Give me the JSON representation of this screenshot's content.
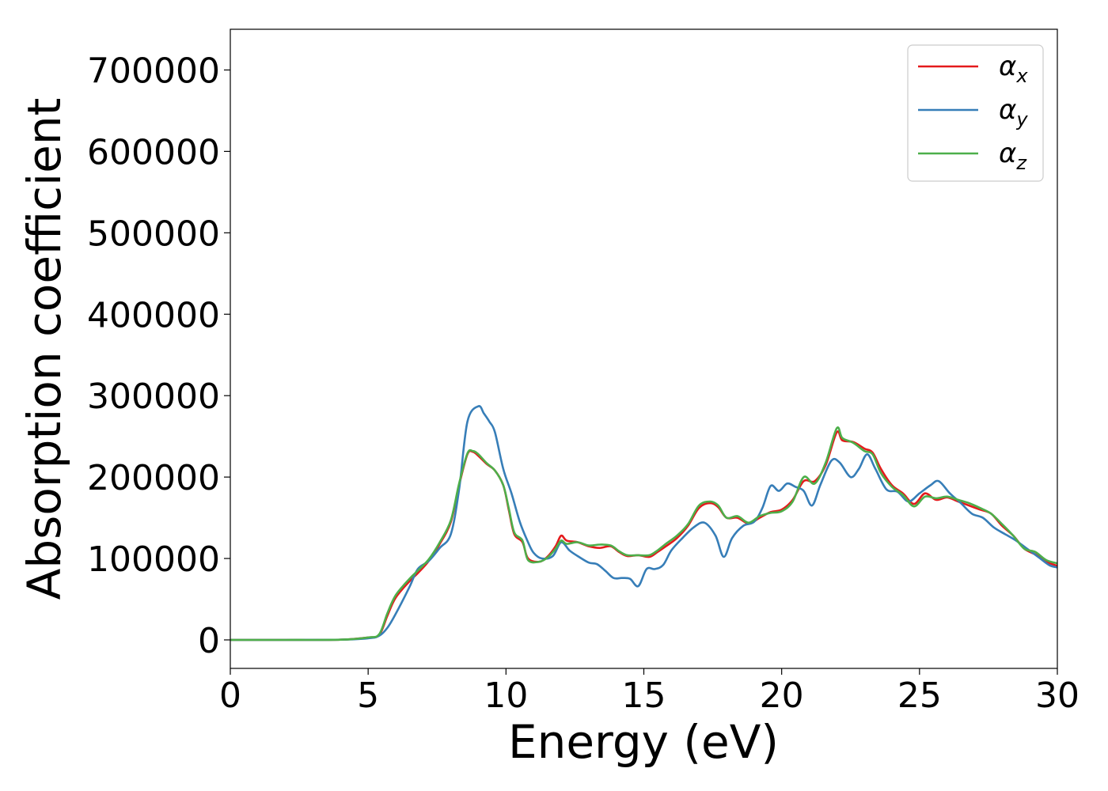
{
  "chart_data": {
    "type": "line",
    "title": "",
    "xlabel": "Energy (eV)",
    "ylabel": "Absorption coefficient",
    "xlim": [
      0,
      30
    ],
    "ylim": [
      -35000,
      750000
    ],
    "xticks": [
      0,
      5,
      10,
      15,
      20,
      25,
      30
    ],
    "xtick_labels": [
      "0",
      "5",
      "10",
      "15",
      "20",
      "25",
      "30"
    ],
    "yticks": [
      0,
      100000,
      200000,
      300000,
      400000,
      500000,
      600000,
      700000
    ],
    "ytick_labels": [
      "0",
      "100000",
      "200000",
      "300000",
      "400000",
      "500000",
      "600000",
      "700000"
    ],
    "grid": false,
    "legend_position": "top-right",
    "series": [
      {
        "name": "αx",
        "legend_base": "α",
        "legend_sub": "x",
        "color": "#e41a1c",
        "points": [
          [
            0,
            0
          ],
          [
            2,
            0
          ],
          [
            4,
            300
          ],
          [
            5,
            3000
          ],
          [
            5.4,
            6000
          ],
          [
            5.7,
            30000
          ],
          [
            6,
            52000
          ],
          [
            6.5,
            72000
          ],
          [
            6.8,
            82000
          ],
          [
            7.2,
            97000
          ],
          [
            7.6,
            118000
          ],
          [
            8,
            145000
          ],
          [
            8.3,
            190000
          ],
          [
            8.6,
            228000
          ],
          [
            8.8,
            231000
          ],
          [
            9,
            226000
          ],
          [
            9.3,
            216000
          ],
          [
            9.6,
            208000
          ],
          [
            9.9,
            190000
          ],
          [
            10.1,
            160000
          ],
          [
            10.3,
            130000
          ],
          [
            10.6,
            120000
          ],
          [
            10.8,
            100000
          ],
          [
            11.2,
            96000
          ],
          [
            11.5,
            102000
          ],
          [
            11.8,
            115000
          ],
          [
            12,
            128000
          ],
          [
            12.2,
            122000
          ],
          [
            12.6,
            120000
          ],
          [
            13,
            115000
          ],
          [
            13.4,
            113000
          ],
          [
            13.8,
            115000
          ],
          [
            14.1,
            108000
          ],
          [
            14.4,
            103000
          ],
          [
            14.8,
            104000
          ],
          [
            15.2,
            102000
          ],
          [
            15.5,
            108000
          ],
          [
            15.8,
            115000
          ],
          [
            16.2,
            125000
          ],
          [
            16.6,
            140000
          ],
          [
            17,
            162000
          ],
          [
            17.4,
            168000
          ],
          [
            17.7,
            163000
          ],
          [
            18,
            150000
          ],
          [
            18.4,
            150000
          ],
          [
            18.8,
            143000
          ],
          [
            19.2,
            150000
          ],
          [
            19.6,
            157000
          ],
          [
            20,
            160000
          ],
          [
            20.4,
            172000
          ],
          [
            20.8,
            195000
          ],
          [
            21.2,
            195000
          ],
          [
            21.6,
            215000
          ],
          [
            22,
            255000
          ],
          [
            22.2,
            245000
          ],
          [
            22.6,
            243000
          ],
          [
            23,
            235000
          ],
          [
            23.3,
            230000
          ],
          [
            23.6,
            210000
          ],
          [
            24,
            190000
          ],
          [
            24.4,
            180000
          ],
          [
            24.8,
            167000
          ],
          [
            25.2,
            180000
          ],
          [
            25.6,
            172000
          ],
          [
            26,
            175000
          ],
          [
            26.4,
            170000
          ],
          [
            26.8,
            165000
          ],
          [
            27.2,
            160000
          ],
          [
            27.6,
            155000
          ],
          [
            28,
            140000
          ],
          [
            28.4,
            128000
          ],
          [
            28.8,
            112000
          ],
          [
            29.2,
            105000
          ],
          [
            29.6,
            96000
          ],
          [
            30,
            91000
          ]
        ]
      },
      {
        "name": "αy",
        "legend_base": "α",
        "legend_sub": "y",
        "color": "#377eb8",
        "points": [
          [
            0,
            0
          ],
          [
            2,
            0
          ],
          [
            4,
            300
          ],
          [
            5,
            2000
          ],
          [
            5.4,
            5000
          ],
          [
            5.7,
            15000
          ],
          [
            6,
            32000
          ],
          [
            6.5,
            65000
          ],
          [
            6.8,
            87000
          ],
          [
            7.2,
            97000
          ],
          [
            7.6,
            113000
          ],
          [
            8,
            130000
          ],
          [
            8.3,
            185000
          ],
          [
            8.6,
            268000
          ],
          [
            9,
            287000
          ],
          [
            9.2,
            278000
          ],
          [
            9.4,
            268000
          ],
          [
            9.6,
            255000
          ],
          [
            9.9,
            210000
          ],
          [
            10.2,
            180000
          ],
          [
            10.5,
            145000
          ],
          [
            10.8,
            120000
          ],
          [
            11,
            107000
          ],
          [
            11.3,
            100000
          ],
          [
            11.7,
            103000
          ],
          [
            12,
            120000
          ],
          [
            12.3,
            110000
          ],
          [
            12.6,
            103000
          ],
          [
            13,
            95000
          ],
          [
            13.3,
            93000
          ],
          [
            13.6,
            85000
          ],
          [
            13.9,
            76000
          ],
          [
            14.2,
            76000
          ],
          [
            14.5,
            75000
          ],
          [
            14.8,
            66000
          ],
          [
            15.1,
            87000
          ],
          [
            15.4,
            87000
          ],
          [
            15.7,
            92000
          ],
          [
            16,
            110000
          ],
          [
            16.4,
            125000
          ],
          [
            16.8,
            138000
          ],
          [
            17.2,
            144000
          ],
          [
            17.6,
            128000
          ],
          [
            17.9,
            102000
          ],
          [
            18.2,
            125000
          ],
          [
            18.6,
            140000
          ],
          [
            19,
            145000
          ],
          [
            19.3,
            162000
          ],
          [
            19.6,
            189000
          ],
          [
            19.9,
            183000
          ],
          [
            20.2,
            192000
          ],
          [
            20.5,
            188000
          ],
          [
            20.8,
            183000
          ],
          [
            21.1,
            165000
          ],
          [
            21.4,
            190000
          ],
          [
            21.8,
            220000
          ],
          [
            22.1,
            218000
          ],
          [
            22.5,
            200000
          ],
          [
            22.8,
            210000
          ],
          [
            23.1,
            228000
          ],
          [
            23.4,
            210000
          ],
          [
            23.8,
            185000
          ],
          [
            24.2,
            182000
          ],
          [
            24.6,
            170000
          ],
          [
            25,
            180000
          ],
          [
            25.4,
            190000
          ],
          [
            25.7,
            195000
          ],
          [
            26.1,
            180000
          ],
          [
            26.5,
            168000
          ],
          [
            26.9,
            155000
          ],
          [
            27.3,
            150000
          ],
          [
            27.7,
            138000
          ],
          [
            28.1,
            130000
          ],
          [
            28.5,
            122000
          ],
          [
            28.9,
            112000
          ],
          [
            29.3,
            102000
          ],
          [
            29.7,
            92000
          ],
          [
            30,
            89000
          ]
        ]
      },
      {
        "name": "αz",
        "legend_base": "α",
        "legend_sub": "z",
        "color": "#4daf4a",
        "points": [
          [
            0,
            0
          ],
          [
            2,
            0
          ],
          [
            4,
            300
          ],
          [
            5,
            3000
          ],
          [
            5.4,
            7000
          ],
          [
            5.7,
            33000
          ],
          [
            6,
            55000
          ],
          [
            6.5,
            75000
          ],
          [
            6.8,
            85000
          ],
          [
            7.2,
            99000
          ],
          [
            7.6,
            120000
          ],
          [
            8,
            147000
          ],
          [
            8.3,
            192000
          ],
          [
            8.6,
            229000
          ],
          [
            8.8,
            232000
          ],
          [
            9,
            228000
          ],
          [
            9.3,
            217000
          ],
          [
            9.6,
            208000
          ],
          [
            9.9,
            190000
          ],
          [
            10.1,
            162000
          ],
          [
            10.3,
            132000
          ],
          [
            10.6,
            122000
          ],
          [
            10.8,
            98000
          ],
          [
            11.2,
            96000
          ],
          [
            11.5,
            101000
          ],
          [
            11.8,
            112000
          ],
          [
            12,
            122000
          ],
          [
            12.2,
            118000
          ],
          [
            12.6,
            120000
          ],
          [
            13,
            116000
          ],
          [
            13.4,
            117000
          ],
          [
            13.8,
            116000
          ],
          [
            14.1,
            109000
          ],
          [
            14.4,
            104000
          ],
          [
            14.8,
            104000
          ],
          [
            15.2,
            104000
          ],
          [
            15.5,
            110000
          ],
          [
            15.8,
            118000
          ],
          [
            16.2,
            128000
          ],
          [
            16.6,
            142000
          ],
          [
            17,
            165000
          ],
          [
            17.4,
            170000
          ],
          [
            17.7,
            165000
          ],
          [
            18,
            150000
          ],
          [
            18.4,
            152000
          ],
          [
            18.8,
            144000
          ],
          [
            19.2,
            152000
          ],
          [
            19.6,
            156000
          ],
          [
            20,
            158000
          ],
          [
            20.4,
            170000
          ],
          [
            20.8,
            200000
          ],
          [
            21.2,
            192000
          ],
          [
            21.6,
            218000
          ],
          [
            22,
            260000
          ],
          [
            22.2,
            248000
          ],
          [
            22.6,
            242000
          ],
          [
            23,
            232000
          ],
          [
            23.3,
            228000
          ],
          [
            23.6,
            205000
          ],
          [
            24,
            188000
          ],
          [
            24.4,
            178000
          ],
          [
            24.8,
            164000
          ],
          [
            25.2,
            176000
          ],
          [
            25.6,
            174000
          ],
          [
            26,
            176000
          ],
          [
            26.4,
            172000
          ],
          [
            26.8,
            168000
          ],
          [
            27.2,
            162000
          ],
          [
            27.6,
            155000
          ],
          [
            28,
            142000
          ],
          [
            28.4,
            128000
          ],
          [
            28.8,
            112000
          ],
          [
            29.2,
            108000
          ],
          [
            29.6,
            98000
          ],
          [
            30,
            94000
          ]
        ]
      }
    ]
  }
}
